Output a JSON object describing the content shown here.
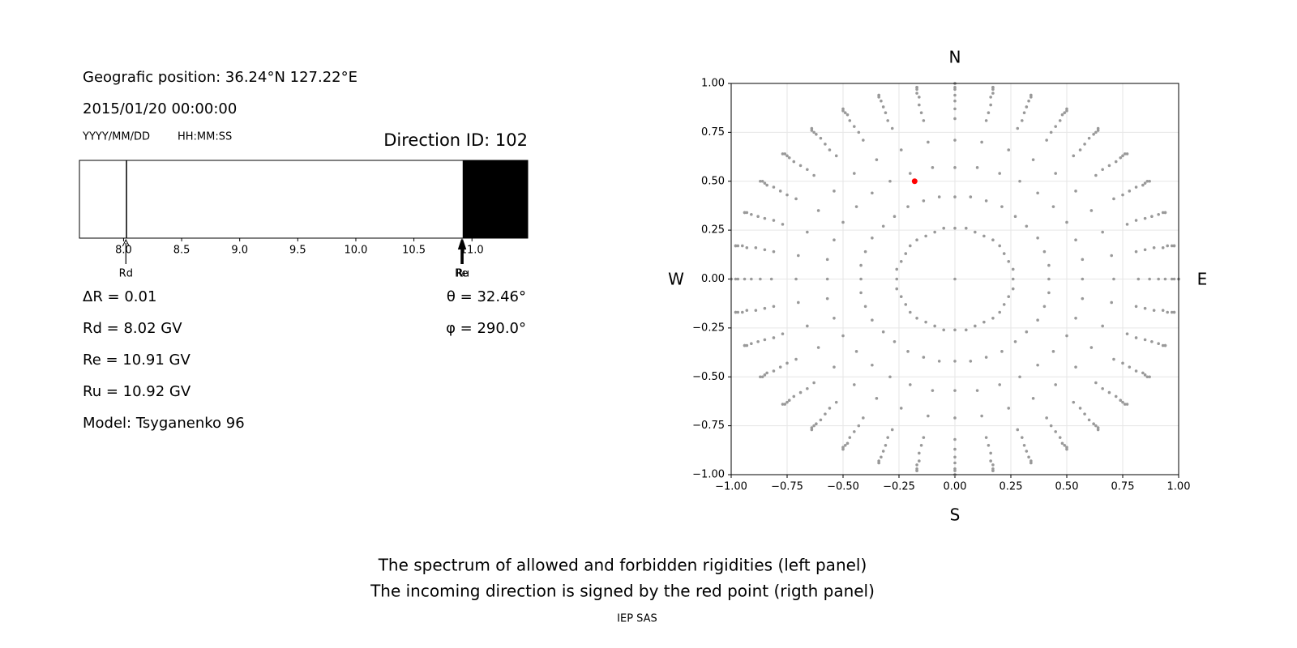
{
  "header": {
    "position": "Geografic position: 36.24°N 127.22°E",
    "datetime": "2015/01/20 00:00:00",
    "date_format": "YYYY/MM/DD",
    "time_format": "HH:MM:SS",
    "direction": "Direction ID: 102"
  },
  "results": {
    "left": [
      "ΔR = 0.01",
      "Rd = 8.02 GV",
      "Re = 10.91 GV",
      "Ru = 10.92 GV",
      "Model: Tsyganenko 96"
    ],
    "right": [
      "θ = 32.46°",
      "φ = 290.0°"
    ]
  },
  "chart_data": [
    {
      "type": "spectrum",
      "xlim": [
        7.62,
        11.48
      ],
      "xticks": [
        {
          "value": 8,
          "label": "8.0"
        },
        8.5,
        {
          "value": 9,
          "label": "9.0"
        },
        9.5,
        {
          "value": 10,
          "label": "10.0"
        },
        10.5,
        {
          "value": 11,
          "label": "11.0"
        }
      ],
      "forbidden": [
        [
          8.02,
          8.03
        ],
        [
          10.92,
          11.48
        ]
      ],
      "color": "#000000",
      "markers": [
        {
          "label": "Rd",
          "value": 8.02
        },
        {
          "label": "Re",
          "value": 10.91
        },
        {
          "label": "Ru",
          "value": 10.92
        }
      ]
    },
    {
      "type": "scatter",
      "xlim": [
        -1,
        1
      ],
      "ylim": [
        -1,
        1
      ],
      "grid": true,
      "xticks": [
        {
          "value": -1,
          "label": "−1.00"
        },
        {
          "value": -0.75,
          "label": "−0.75"
        },
        {
          "value": -0.5,
          "label": "−0.50"
        },
        {
          "value": -0.25,
          "label": "−0.25"
        },
        {
          "value": 0,
          "label": "0.00"
        },
        {
          "value": 0.25,
          "label": "0.25"
        },
        {
          "value": 0.5,
          "label": "0.50"
        },
        {
          "value": 0.75,
          "label": "0.75"
        },
        {
          "value": 1,
          "label": "1.00"
        }
      ],
      "yticks": [
        {
          "value": -1,
          "label": "−1.00"
        },
        {
          "value": -0.75,
          "label": "−0.75"
        },
        {
          "value": -0.5,
          "label": "−0.50"
        },
        {
          "value": -0.25,
          "label": "−0.25"
        },
        {
          "value": 0,
          "label": "0.00"
        },
        {
          "value": 0.25,
          "label": "0.25"
        },
        {
          "value": 0.5,
          "label": "0.50"
        },
        {
          "value": 0.75,
          "label": "0.75"
        },
        {
          "value": 1,
          "label": "1.00"
        }
      ],
      "labels": {
        "north": "N",
        "south": "S",
        "west": "W",
        "east": "E"
      },
      "series": [
        {
          "color": "#999999",
          "size": 1.8,
          "x": [
            0,
            0.26,
            0.26,
            0.24,
            0.22,
            0.2,
            0.17,
            0.13,
            0.09,
            0.05,
            0,
            -0.05,
            -0.09,
            -0.13,
            -0.17,
            -0.2,
            -0.22,
            -0.24,
            -0.26,
            -0.26,
            -0.26,
            -0.24,
            -0.22,
            -0.2,
            -0.17,
            -0.13,
            -0.09,
            -0.05,
            0,
            0.05,
            0.09,
            0.13,
            0.17,
            0.2,
            0.22,
            0.24,
            0.26,
            0.42,
            0.42,
            0.4,
            0.37,
            0.32,
            0.27,
            0.21,
            0.14,
            0.07,
            0,
            -0.07,
            -0.14,
            -0.21,
            -0.27,
            -0.32,
            -0.37,
            -0.4,
            -0.42,
            -0.42,
            -0.42,
            -0.4,
            -0.37,
            -0.32,
            -0.27,
            -0.21,
            -0.14,
            -0.07,
            0,
            0.07,
            0.14,
            0.21,
            0.27,
            0.32,
            0.37,
            0.4,
            0.42,
            0.57,
            0.57,
            0.54,
            0.5,
            0.44,
            0.37,
            0.29,
            0.2,
            0.1,
            0,
            -0.1,
            -0.2,
            -0.29,
            -0.37,
            -0.44,
            -0.5,
            -0.54,
            -0.57,
            -0.57,
            -0.57,
            -0.54,
            -0.5,
            -0.44,
            -0.37,
            -0.29,
            -0.2,
            -0.1,
            0,
            0.1,
            0.2,
            0.29,
            0.37,
            0.44,
            0.5,
            0.54,
            0.57,
            0.71,
            0.7,
            0.66,
            0.61,
            0.54,
            0.45,
            0.35,
            0.24,
            0.12,
            0,
            -0.12,
            -0.24,
            -0.35,
            -0.45,
            -0.54,
            -0.61,
            -0.66,
            -0.7,
            -0.71,
            -0.7,
            -0.66,
            -0.61,
            -0.54,
            -0.45,
            -0.35,
            -0.24,
            -0.12,
            0,
            0.12,
            0.24,
            0.35,
            0.45,
            0.54,
            0.61,
            0.66,
            0.7,
            0.82,
            0.81,
            0.77,
            0.71,
            0.63,
            0.53,
            0.41,
            0.28,
            0.14,
            0,
            -0.14,
            -0.28,
            -0.41,
            -0.53,
            -0.63,
            -0.71,
            -0.77,
            -0.81,
            -0.82,
            -0.81,
            -0.77,
            -0.71,
            -0.63,
            -0.53,
            -0.41,
            -0.28,
            -0.14,
            0,
            0.14,
            0.28,
            0.41,
            0.53,
            0.63,
            0.71,
            0.77,
            0.81,
            0.87,
            0.85,
            0.81,
            0.75,
            0.66,
            0.56,
            0.43,
            0.3,
            0.15,
            0,
            -0.15,
            -0.3,
            -0.43,
            -0.56,
            -0.66,
            -0.75,
            -0.81,
            -0.85,
            -0.87,
            -0.85,
            -0.81,
            -0.75,
            -0.66,
            -0.56,
            -0.43,
            -0.3,
            -0.15,
            0,
            0.15,
            0.3,
            0.43,
            0.56,
            0.66,
            0.75,
            0.81,
            0.85,
            0.91,
            0.89,
            0.85,
            0.78,
            0.69,
            0.58,
            0.45,
            0.31,
            0.16,
            0,
            -0.16,
            -0.31,
            -0.45,
            -0.58,
            -0.69,
            -0.78,
            -0.85,
            -0.89,
            -0.91,
            -0.89,
            -0.85,
            -0.78,
            -0.69,
            -0.58,
            -0.45,
            -0.31,
            -0.16,
            0,
            0.16,
            0.31,
            0.45,
            0.58,
            0.69,
            0.78,
            0.85,
            0.89,
            0.94,
            0.93,
            0.88,
            0.81,
            0.72,
            0.6,
            0.47,
            0.32,
            0.16,
            0,
            -0.16,
            -0.32,
            -0.47,
            -0.6,
            -0.72,
            -0.81,
            -0.88,
            -0.93,
            -0.94,
            -0.93,
            -0.88,
            -0.81,
            -0.72,
            -0.6,
            -0.47,
            -0.32,
            -0.16,
            0,
            0.16,
            0.32,
            0.47,
            0.6,
            0.72,
            0.81,
            0.88,
            0.93,
            0.97,
            0.95,
            0.91,
            0.84,
            0.74,
            0.62,
            0.48,
            0.33,
            0.17,
            0,
            -0.17,
            -0.33,
            -0.48,
            -0.62,
            -0.74,
            -0.84,
            -0.91,
            -0.95,
            -0.97,
            -0.95,
            -0.91,
            -0.84,
            -0.74,
            -0.62,
            -0.48,
            -0.33,
            -0.17,
            0,
            0.17,
            0.33,
            0.48,
            0.62,
            0.74,
            0.84,
            0.91,
            0.95,
            0.98,
            0.97,
            0.93,
            0.85,
            0.75,
            0.63,
            0.49,
            0.34,
            0.17,
            0,
            -0.17,
            -0.34,
            -0.49,
            -0.63,
            -0.75,
            -0.85,
            -0.93,
            -0.97,
            -0.98,
            -0.97,
            -0.93,
            -0.85,
            -0.75,
            -0.63,
            -0.49,
            -0.34,
            -0.17,
            0,
            0.17,
            0.34,
            0.49,
            0.63,
            0.75,
            0.85,
            0.93,
            0.97,
            1,
            0.98,
            0.94,
            0.86,
            0.76,
            0.64,
            0.5,
            0.34,
            0.17,
            0,
            -0.17,
            -0.34,
            -0.5,
            -0.64,
            -0.76,
            -0.86,
            -0.94,
            -0.98,
            -1,
            -0.98,
            -0.94,
            -0.86,
            -0.76,
            -0.64,
            -0.5,
            -0.34,
            -0.17,
            0,
            0.17,
            0.34,
            0.5,
            0.64,
            0.76,
            0.86,
            0.94,
            0.98,
            1,
            0.98,
            0.94,
            0.87,
            0.77,
            0.64,
            0.5,
            0.34,
            0.17,
            0,
            -0.17,
            -0.34,
            -0.5,
            -0.64,
            -0.77,
            -0.87,
            -0.94,
            -0.98,
            -1,
            -0.98,
            -0.94,
            -0.87,
            -0.77,
            -0.64,
            -0.5,
            -0.34,
            -0.17,
            0,
            0.17,
            0.34,
            0.5,
            0.64,
            0.77,
            0.87,
            0.94,
            0.98
          ],
          "y": [
            0,
            0,
            0.05,
            0.09,
            0.13,
            0.17,
            0.2,
            0.22,
            0.24,
            0.26,
            0.26,
            0.26,
            0.24,
            0.22,
            0.2,
            0.17,
            0.13,
            0.09,
            0.05,
            0,
            -0.05,
            -0.09,
            -0.13,
            -0.17,
            -0.2,
            -0.22,
            -0.24,
            -0.26,
            -0.26,
            -0.26,
            -0.24,
            -0.22,
            -0.2,
            -0.17,
            -0.13,
            -0.09,
            -0.05,
            0,
            0.07,
            0.14,
            0.21,
            0.27,
            0.32,
            0.37,
            0.4,
            0.42,
            0.42,
            0.42,
            0.4,
            0.37,
            0.32,
            0.27,
            0.21,
            0.14,
            0.07,
            0,
            -0.07,
            -0.14,
            -0.21,
            -0.27,
            -0.32,
            -0.37,
            -0.4,
            -0.42,
            -0.42,
            -0.42,
            -0.4,
            -0.37,
            -0.32,
            -0.27,
            -0.21,
            -0.14,
            -0.07,
            0,
            0.1,
            0.2,
            0.29,
            0.37,
            0.44,
            0.5,
            0.54,
            0.57,
            0.57,
            0.57,
            0.54,
            0.5,
            0.44,
            0.37,
            0.29,
            0.2,
            0.1,
            0,
            -0.1,
            -0.2,
            -0.29,
            -0.37,
            -0.44,
            -0.5,
            -0.54,
            -0.57,
            -0.57,
            -0.57,
            -0.54,
            -0.5,
            -0.44,
            -0.37,
            -0.29,
            -0.2,
            -0.1,
            0,
            0.12,
            0.24,
            0.35,
            0.45,
            0.54,
            0.61,
            0.66,
            0.7,
            0.71,
            0.7,
            0.66,
            0.61,
            0.54,
            0.45,
            0.35,
            0.24,
            0.12,
            0,
            -0.12,
            -0.24,
            -0.35,
            -0.45,
            -0.54,
            -0.61,
            -0.66,
            -0.7,
            -0.71,
            -0.7,
            -0.66,
            -0.61,
            -0.54,
            -0.45,
            -0.35,
            -0.24,
            -0.12,
            0,
            0.14,
            0.28,
            0.41,
            0.53,
            0.63,
            0.71,
            0.77,
            0.81,
            0.82,
            0.81,
            0.77,
            0.71,
            0.63,
            0.53,
            0.41,
            0.28,
            0.14,
            0,
            -0.14,
            -0.28,
            -0.41,
            -0.53,
            -0.63,
            -0.71,
            -0.77,
            -0.81,
            -0.82,
            -0.81,
            -0.77,
            -0.71,
            -0.63,
            -0.53,
            -0.41,
            -0.28,
            -0.14,
            0,
            0.15,
            0.3,
            0.43,
            0.56,
            0.66,
            0.75,
            0.81,
            0.85,
            0.87,
            0.85,
            0.81,
            0.75,
            0.66,
            0.56,
            0.43,
            0.3,
            0.15,
            0,
            -0.15,
            -0.3,
            -0.43,
            -0.56,
            -0.66,
            -0.75,
            -0.81,
            -0.85,
            -0.87,
            -0.85,
            -0.81,
            -0.75,
            -0.66,
            -0.56,
            -0.43,
            -0.3,
            -0.15,
            0,
            0.16,
            0.31,
            0.45,
            0.58,
            0.69,
            0.78,
            0.85,
            0.89,
            0.91,
            0.89,
            0.85,
            0.78,
            0.69,
            0.58,
            0.45,
            0.31,
            0.16,
            0,
            -0.16,
            -0.31,
            -0.45,
            -0.58,
            -0.69,
            -0.78,
            -0.85,
            -0.89,
            -0.91,
            -0.89,
            -0.85,
            -0.78,
            -0.69,
            -0.58,
            -0.45,
            -0.31,
            -0.16,
            0,
            0.16,
            0.32,
            0.47,
            0.6,
            0.72,
            0.81,
            0.88,
            0.93,
            0.94,
            0.93,
            0.88,
            0.81,
            0.72,
            0.6,
            0.47,
            0.32,
            0.16,
            0,
            -0.16,
            -0.32,
            -0.47,
            -0.6,
            -0.72,
            -0.81,
            -0.88,
            -0.93,
            -0.94,
            -0.93,
            -0.88,
            -0.81,
            -0.72,
            -0.6,
            -0.47,
            -0.32,
            -0.16,
            0,
            0.17,
            0.33,
            0.48,
            0.62,
            0.74,
            0.84,
            0.91,
            0.95,
            0.97,
            0.95,
            0.91,
            0.84,
            0.74,
            0.62,
            0.48,
            0.33,
            0.17,
            0,
            -0.17,
            -0.33,
            -0.48,
            -0.62,
            -0.74,
            -0.84,
            -0.91,
            -0.95,
            -0.97,
            -0.95,
            -0.91,
            -0.84,
            -0.74,
            -0.62,
            -0.48,
            -0.33,
            -0.17,
            0,
            0.17,
            0.34,
            0.49,
            0.63,
            0.75,
            0.85,
            0.93,
            0.97,
            0.98,
            0.97,
            0.93,
            0.85,
            0.75,
            0.63,
            0.49,
            0.34,
            0.17,
            0,
            -0.17,
            -0.34,
            -0.49,
            -0.63,
            -0.75,
            -0.85,
            -0.93,
            -0.97,
            -0.98,
            -0.97,
            -0.93,
            -0.85,
            -0.75,
            -0.63,
            -0.49,
            -0.34,
            -0.17,
            0,
            0.17,
            0.34,
            0.5,
            0.64,
            0.76,
            0.86,
            0.94,
            0.98,
            1,
            0.98,
            0.94,
            0.86,
            0.76,
            0.64,
            0.5,
            0.34,
            0.17,
            0,
            -0.17,
            -0.34,
            -0.5,
            -0.64,
            -0.76,
            -0.86,
            -0.94,
            -0.98,
            -1,
            -0.98,
            -0.94,
            -0.86,
            -0.76,
            -0.64,
            -0.5,
            -0.34,
            -0.17,
            0,
            0.17,
            0.34,
            0.5,
            0.64,
            0.77,
            0.87,
            0.94,
            0.98,
            1,
            0.98,
            0.94,
            0.87,
            0.77,
            0.64,
            0.5,
            0.34,
            0.17,
            0,
            -0.17,
            -0.34,
            -0.5,
            -0.64,
            -0.77,
            -0.87,
            -0.94,
            -0.98,
            -1,
            -0.98,
            -0.94,
            -0.87,
            -0.77,
            -0.64,
            -0.5,
            -0.34,
            -0.17
          ]
        },
        {
          "color": "#ff0000",
          "size": 3.5,
          "x": [
            -0.18
          ],
          "y": [
            0.5
          ]
        }
      ]
    }
  ],
  "caption": {
    "lines": [
      "The spectrum of allowed and forbidden rigidities (left panel)",
      "The incoming direction is signed by the red point (rigth panel)"
    ],
    "credit": "IEP SAS"
  }
}
